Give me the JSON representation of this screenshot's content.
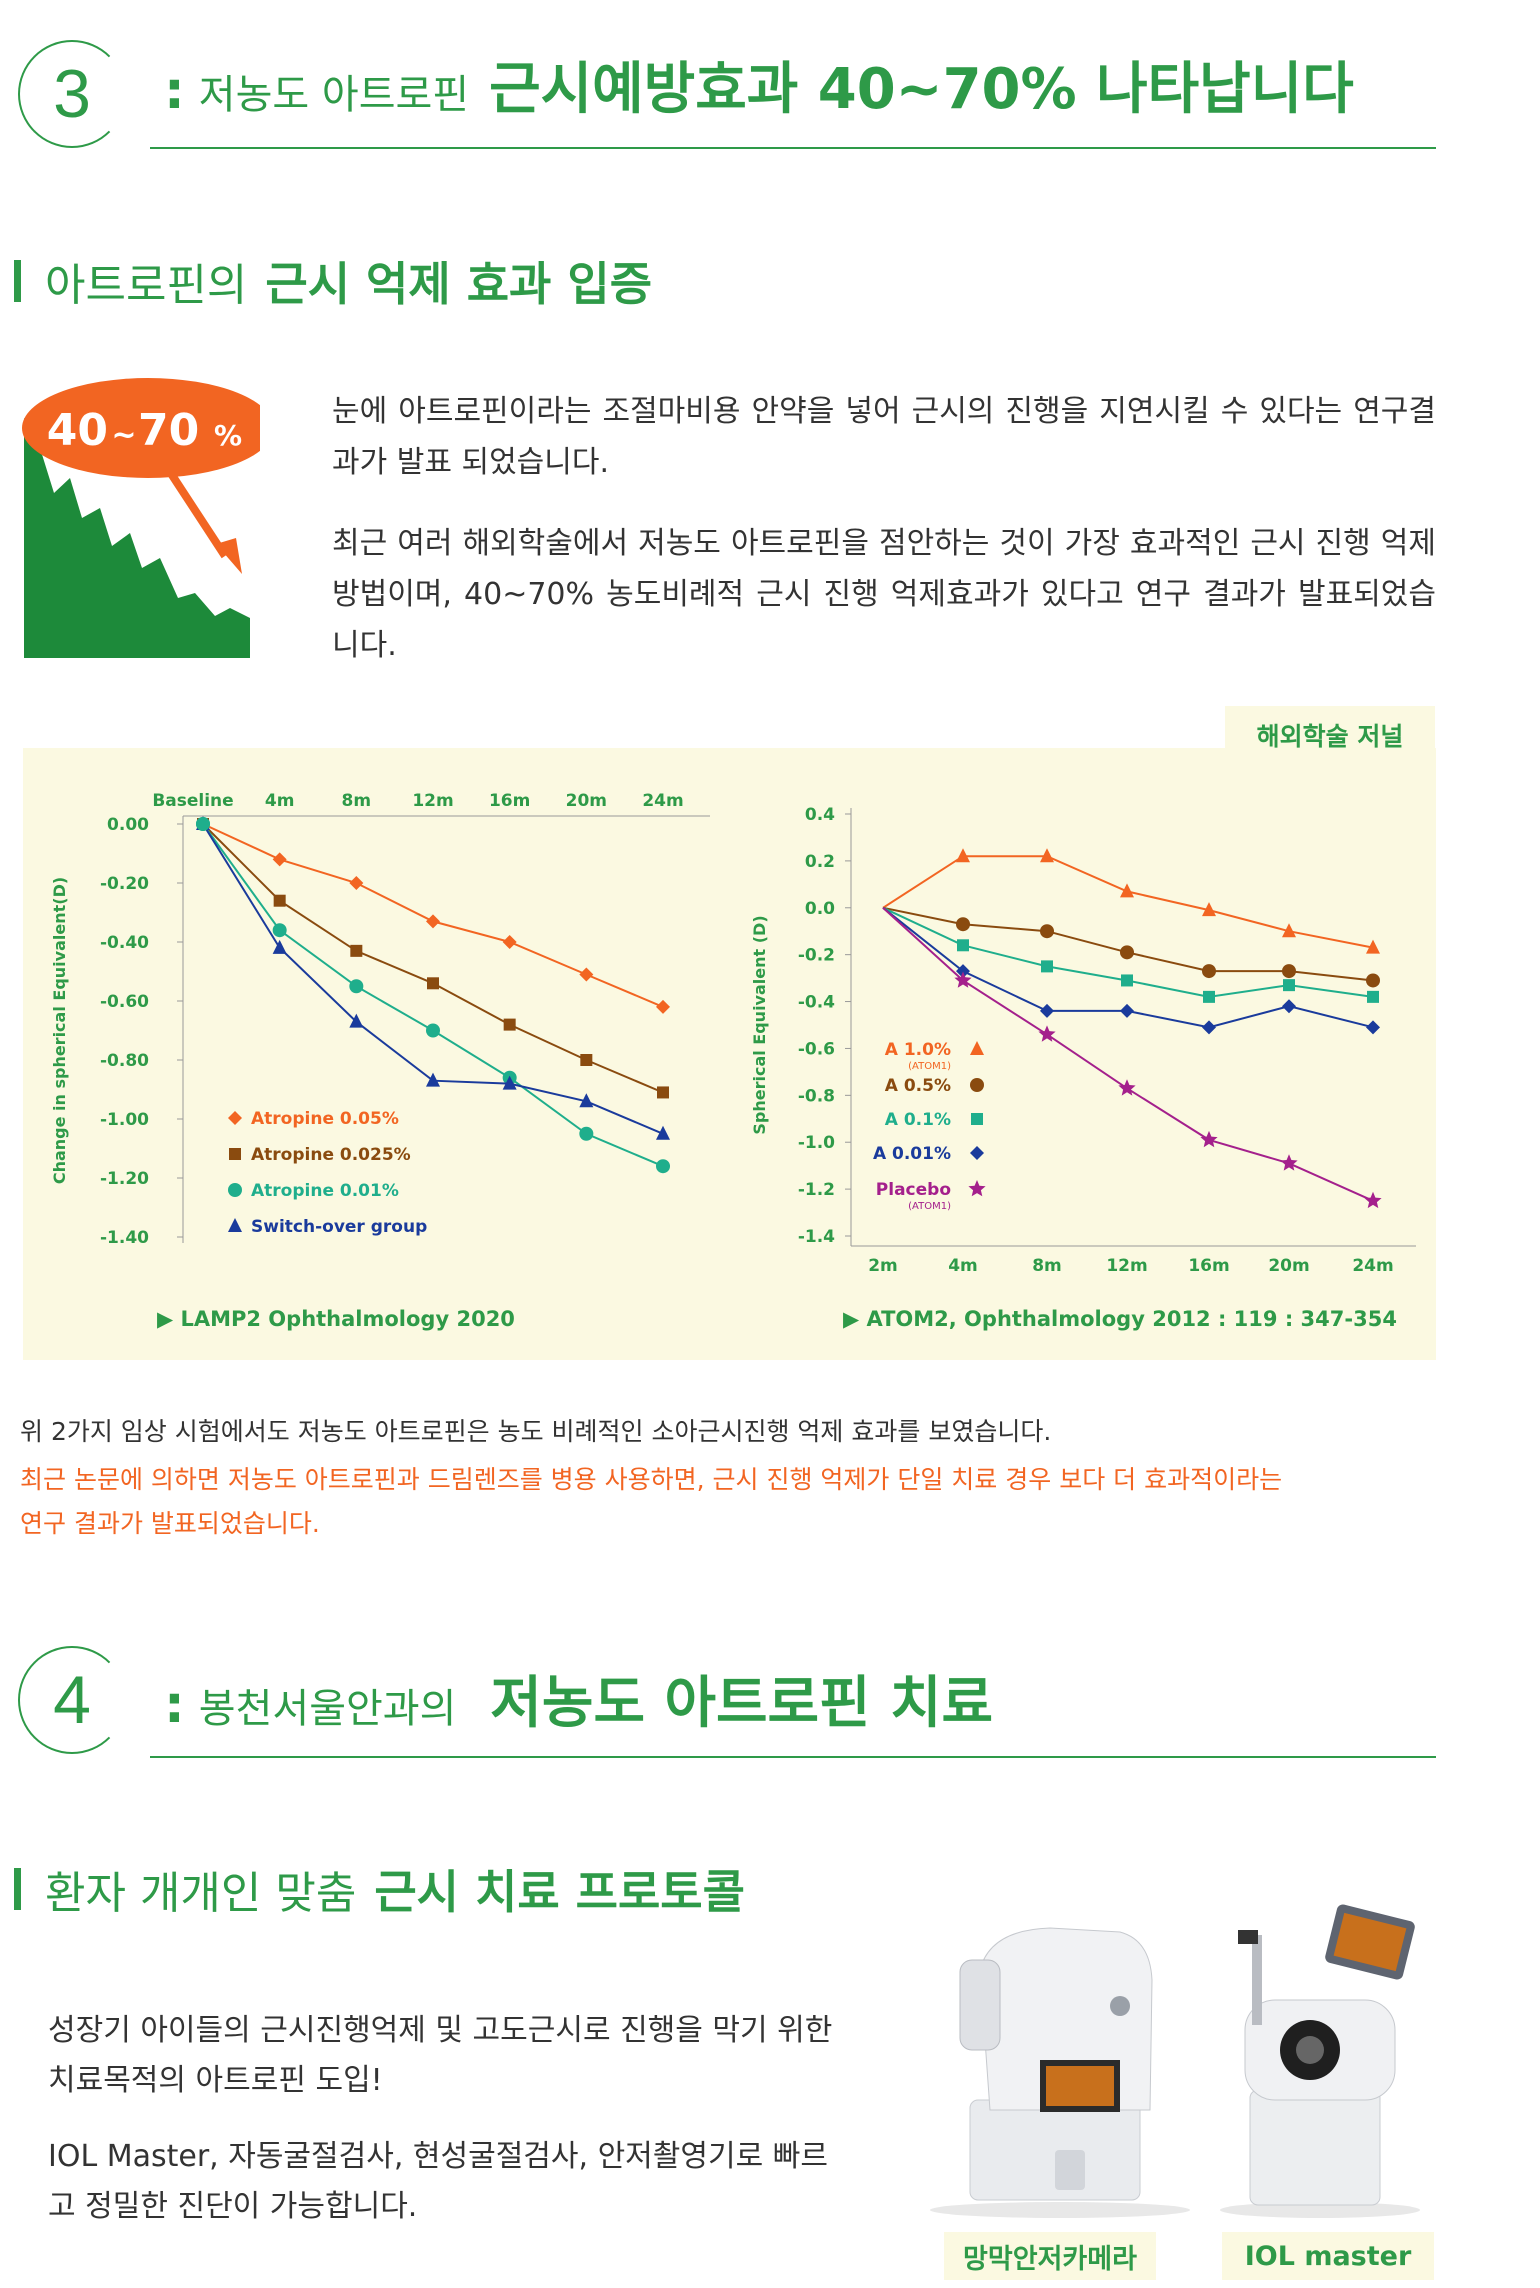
{
  "section3": {
    "number": "3",
    "colon": ":",
    "title_light": "저농도 아트로핀",
    "title_bold": "근시예방효과 40~70% 나타납니다"
  },
  "subhead1": {
    "light": "아트로핀의",
    "bold": "근시 억제 효과 입증"
  },
  "badge": {
    "big": "40",
    "tilde": "~",
    "big2": "70",
    "unit": "%"
  },
  "intro": {
    "p1": "눈에 아트로핀이라는 조절마비용 안약을 넣어 근시의 진행을 지연시킬 수 있다는 연구결과가 발표 되었습니다.",
    "p2": "최근 여러 해외학술에서 저농도 아트로핀을 점안하는 것이 가장 효과적인 근시 진행 억제방법이며, 40~70% 농도비례적 근시 진행 억제효과가 있다고 연구 결과가 발표되었습니다."
  },
  "journal_tag": "해외학술 저널",
  "chart_data": [
    {
      "type": "line",
      "ylabel": "Change in spherical Equivalent(D)",
      "x_ticks": [
        "Baseline",
        "4m",
        "8m",
        "12m",
        "16m",
        "20m",
        "24m"
      ],
      "x": [
        0,
        4,
        8,
        12,
        16,
        20,
        24
      ],
      "ylim": [
        -1.4,
        0.0
      ],
      "y_ticks": [
        "0.00",
        "-0.20",
        "-0.40",
        "-0.60",
        "-0.80",
        "-1.00",
        "-1.20",
        "-1.40"
      ],
      "legend_position": "bottom-left",
      "series": [
        {
          "name": "Atropine 0.05%",
          "color": "#f26522",
          "marker": "diamond",
          "x": [
            0,
            4,
            8,
            12,
            16,
            20,
            24
          ],
          "values": [
            0.0,
            -0.12,
            -0.2,
            -0.33,
            -0.4,
            -0.51,
            -0.62
          ]
        },
        {
          "name": "Atropine 0.025%",
          "color": "#8a4b0f",
          "marker": "square",
          "x": [
            0,
            4,
            8,
            12,
            16,
            20,
            24
          ],
          "values": [
            0.0,
            -0.26,
            -0.43,
            -0.54,
            -0.68,
            -0.8,
            -0.91
          ]
        },
        {
          "name": "Atropine 0.01%",
          "color": "#1fae8c",
          "marker": "circle",
          "x": [
            0,
            4,
            8,
            12,
            16,
            20,
            24
          ],
          "values": [
            0.0,
            -0.36,
            -0.55,
            -0.7,
            -0.86,
            -1.05,
            -1.16
          ]
        },
        {
          "name": "Switch-over group",
          "color": "#1a3b9c",
          "marker": "triangle",
          "x": [
            0,
            4,
            8,
            12,
            16,
            20,
            24
          ],
          "values": [
            0.0,
            -0.42,
            -0.67,
            -0.87,
            -0.88,
            -0.94,
            -1.05
          ]
        }
      ],
      "source": "▶ LAMP2 Ophthalmology 2020"
    },
    {
      "type": "line",
      "ylabel": "Spherical Equivalent (D)",
      "x_ticks": [
        "2m",
        "4m",
        "8m",
        "12m",
        "16m",
        "20m",
        "24m"
      ],
      "x": [
        "2m",
        "4m",
        "8m",
        "12m",
        "16m",
        "20m",
        "24m"
      ],
      "ylim": [
        -1.4,
        0.4
      ],
      "y_ticks": [
        "0.4",
        "0.2",
        "0.0",
        "-0.2",
        "-0.4",
        "-0.6",
        "-0.8",
        "-1.0",
        "-1.2",
        "-1.4"
      ],
      "legend_position": "bottom-left",
      "series": [
        {
          "name": "A 1.0%",
          "sub": "(ATOM1)",
          "color": "#f26522",
          "marker": "triangle",
          "values": [
            0.0,
            0.22,
            0.22,
            0.07,
            -0.01,
            -0.1,
            -0.17
          ]
        },
        {
          "name": "A 0.5%",
          "color": "#8a4b0f",
          "marker": "circle",
          "values": [
            0.0,
            -0.07,
            -0.1,
            -0.19,
            -0.27,
            -0.27,
            -0.31
          ]
        },
        {
          "name": "A 0.1%",
          "color": "#1fae8c",
          "marker": "square",
          "values": [
            0.0,
            -0.16,
            -0.25,
            -0.31,
            -0.38,
            -0.33,
            -0.38
          ]
        },
        {
          "name": "A 0.01%",
          "color": "#1a3b9c",
          "marker": "diamond",
          "values": [
            0.0,
            -0.27,
            -0.44,
            -0.44,
            -0.51,
            -0.42,
            -0.51
          ]
        },
        {
          "name": "Placebo",
          "sub": "(ATOM1)",
          "color": "#a4208c",
          "marker": "star",
          "values": [
            0.0,
            -0.31,
            -0.54,
            -0.77,
            -0.99,
            -1.09,
            -1.25
          ]
        }
      ],
      "source": "▶ ATOM2, Ophthalmology 2012 : 119 : 347-354"
    }
  ],
  "notes": {
    "line1": "위 2가지 임상 시험에서도 저농도 아트로핀은 농도 비례적인 소아근시진행 억제 효과를 보였습니다.",
    "line2": "최근 논문에 의하면 저농도 아트로핀과 드림렌즈를 병용 사용하면, 근시 진행 억제가 단일 치료 경우 보다 더 효과적이라는",
    "line3": "연구 결과가 발표되었습니다.",
    "highlight_color": "#f26522"
  },
  "section4": {
    "number": "4",
    "colon": ":",
    "title_light": "봉천서울안과의",
    "title_bold": "저농도 아트로핀 치료"
  },
  "subhead2": {
    "light": "환자 개개인 맞춤",
    "bold": "근시 치료 프로토콜"
  },
  "protocol": {
    "p1": "성장기 아이들의 근시진행억제 및 고도근시로 진행을 막기 위한 치료목적의 아트로핀 도입!",
    "p2": "IOL Master, 자동굴절검사, 현성굴절검사, 안저촬영기로 빠르고 정밀한 진단이 가능합니다."
  },
  "devices": [
    {
      "label": "망막안저카메라"
    },
    {
      "label": "IOL master"
    }
  ],
  "colors": {
    "green": "#2e9a48",
    "orange": "#f26522",
    "panel": "#fbf9e1"
  }
}
